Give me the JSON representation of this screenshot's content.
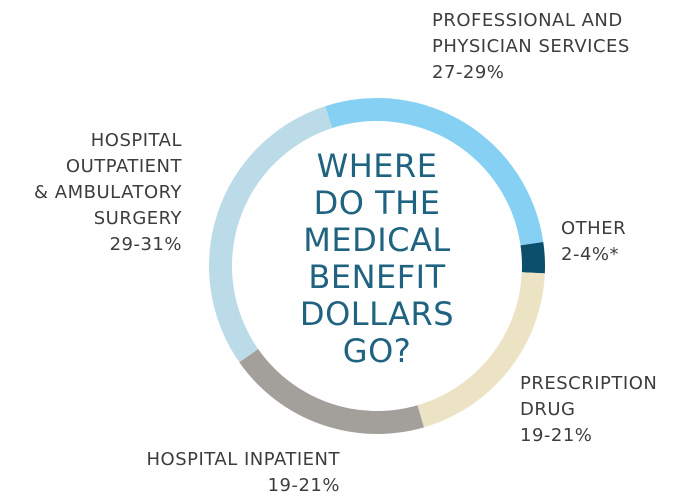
{
  "chart_data": {
    "type": "donut",
    "title": "WHERE\nDO THE\nMEDICAL\nBENEFIT\nDOLLARS\nGO?",
    "categories": [
      "PROFESSIONAL AND\nPHYSICIAN SERVICES",
      "OTHER",
      "PRESCRIPTION\nDRUG",
      "HOSPITAL INPATIENT",
      "HOSPITAL\nOUTPATIENT\n& AMBULATORY\nSURGERY"
    ],
    "values": [
      28,
      3,
      20,
      20,
      30
    ],
    "value_labels": [
      "27-29%",
      "2-4%*",
      "19-21%",
      "19-21%",
      "29-31%"
    ],
    "colors": [
      "#86d0f3",
      "#0b4f6c",
      "#ebe3c3",
      "#a39f9a",
      "#bcdbe8"
    ]
  }
}
